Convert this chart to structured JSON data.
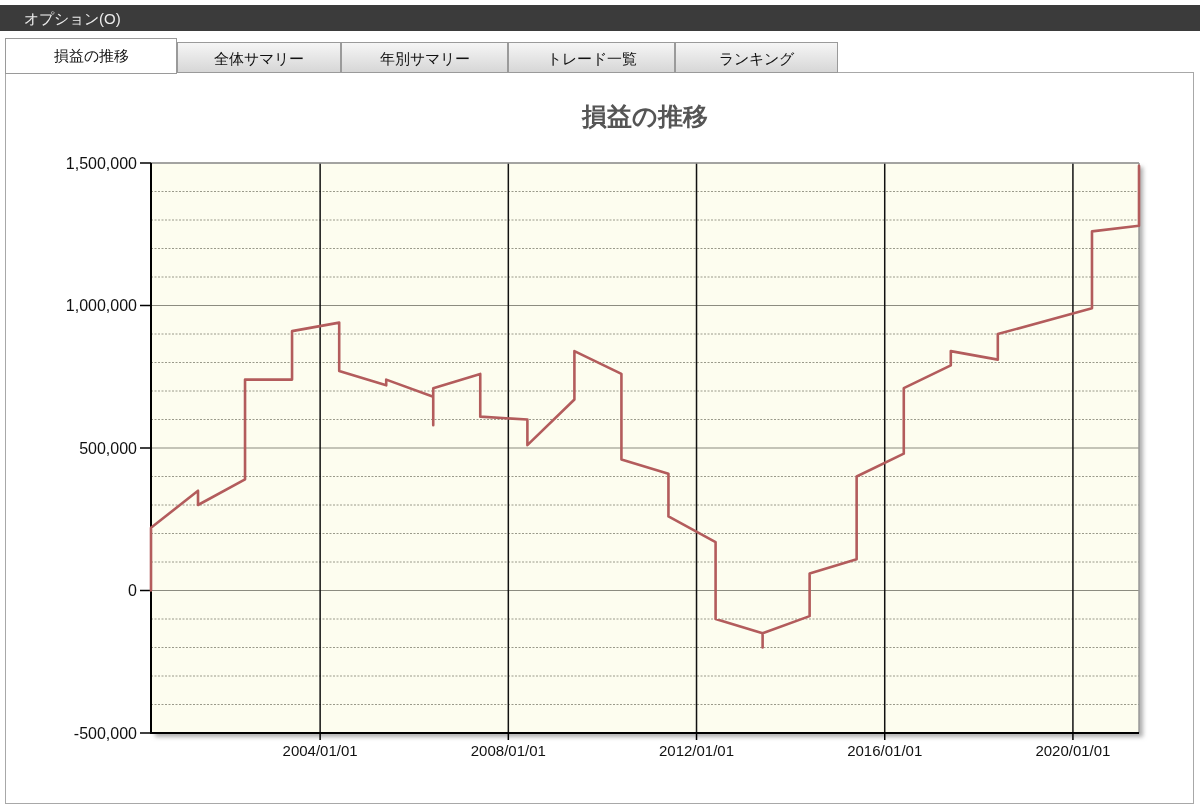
{
  "chart_data": {
    "type": "line",
    "title": "損益の推移",
    "annotations": [
      "オプション(O)",
      "損益の推移",
      "全体サマリー",
      "年別サマリー",
      "トレード一覧",
      "ランキング"
    ],
    "x": [
      "2000-05-28",
      "2000-05-28",
      "2001-05-28",
      "2001-05-28",
      "2002-05-28",
      "2002-05-28",
      "2003-05-28",
      "2003-05-28",
      "2004-05-28",
      "2004-05-28",
      "2005-05-28",
      "2005-05-28",
      "2006-05-28",
      "2006-05-28",
      "2006-05-28",
      "2007-05-28",
      "2007-05-28",
      "2008-05-28",
      "2008-05-28",
      "2009-05-28",
      "2009-05-28",
      "2010-05-28",
      "2010-05-28",
      "2011-05-28",
      "2011-05-28",
      "2012-05-28",
      "2012-05-28",
      "2013-05-28",
      "2013-05-28",
      "2013-05-28",
      "2014-05-28",
      "2014-05-28",
      "2015-05-28",
      "2015-05-28",
      "2016-05-28",
      "2016-05-28",
      "2017-05-28",
      "2017-05-28",
      "2018-05-28",
      "2018-05-28",
      "2020-05-28",
      "2020-05-28",
      "2021-05-28",
      "2021-05-28"
    ],
    "values": [
      0,
      220000,
      350000,
      300000,
      390000,
      740000,
      740000,
      910000,
      940000,
      770000,
      720000,
      740000,
      680000,
      580000,
      710000,
      760000,
      610000,
      600000,
      510000,
      670000,
      840000,
      760000,
      460000,
      410000,
      260000,
      170000,
      -100000,
      -150000,
      -200000,
      -150000,
      -90000,
      60000,
      110000,
      400000,
      480000,
      710000,
      790000,
      840000,
      810000,
      900000,
      990000,
      1260000,
      1280000,
      1490000
    ],
    "color": "#b35c5c",
    "line_style": "solid",
    "xlim": [
      "2000-05-28",
      "2021-05-28"
    ],
    "xticks": [
      {
        "value": "2004-01-01",
        "label": "2004/01/01"
      },
      {
        "value": "2008-01-01",
        "label": "2008/01/01"
      },
      {
        "value": "2012-01-01",
        "label": "2012/01/01"
      },
      {
        "value": "2016-01-01",
        "label": "2016/01/01"
      },
      {
        "value": "2020-01-01",
        "label": "2020/01/01"
      }
    ],
    "ylim": [
      -500000,
      1500000
    ],
    "yticks": [
      {
        "value": -500000,
        "label": "-500,000"
      },
      {
        "value": -400000,
        "label": null
      },
      {
        "value": -300000,
        "label": null
      },
      {
        "value": -200000,
        "label": null
      },
      {
        "value": -100000,
        "label": null
      },
      0,
      {
        "value": 100000,
        "label": null
      },
      {
        "value": 200000,
        "label": null
      },
      {
        "value": 300000,
        "label": null
      },
      {
        "value": 400000,
        "label": null
      },
      {
        "value": 500000,
        "label": "500,000"
      },
      {
        "value": 600000,
        "label": null
      },
      {
        "value": 700000,
        "label": null
      },
      {
        "value": 800000,
        "label": null
      },
      {
        "value": 900000,
        "label": null
      },
      {
        "value": 1000000,
        "label": "1,000,000"
      },
      {
        "value": 1100000,
        "label": null
      },
      {
        "value": 1200000,
        "label": null
      },
      {
        "value": 1300000,
        "label": null
      },
      {
        "value": 1400000,
        "label": null
      },
      {
        "value": 1500000,
        "label": "1,500,000"
      }
    ],
    "grid": true
  }
}
